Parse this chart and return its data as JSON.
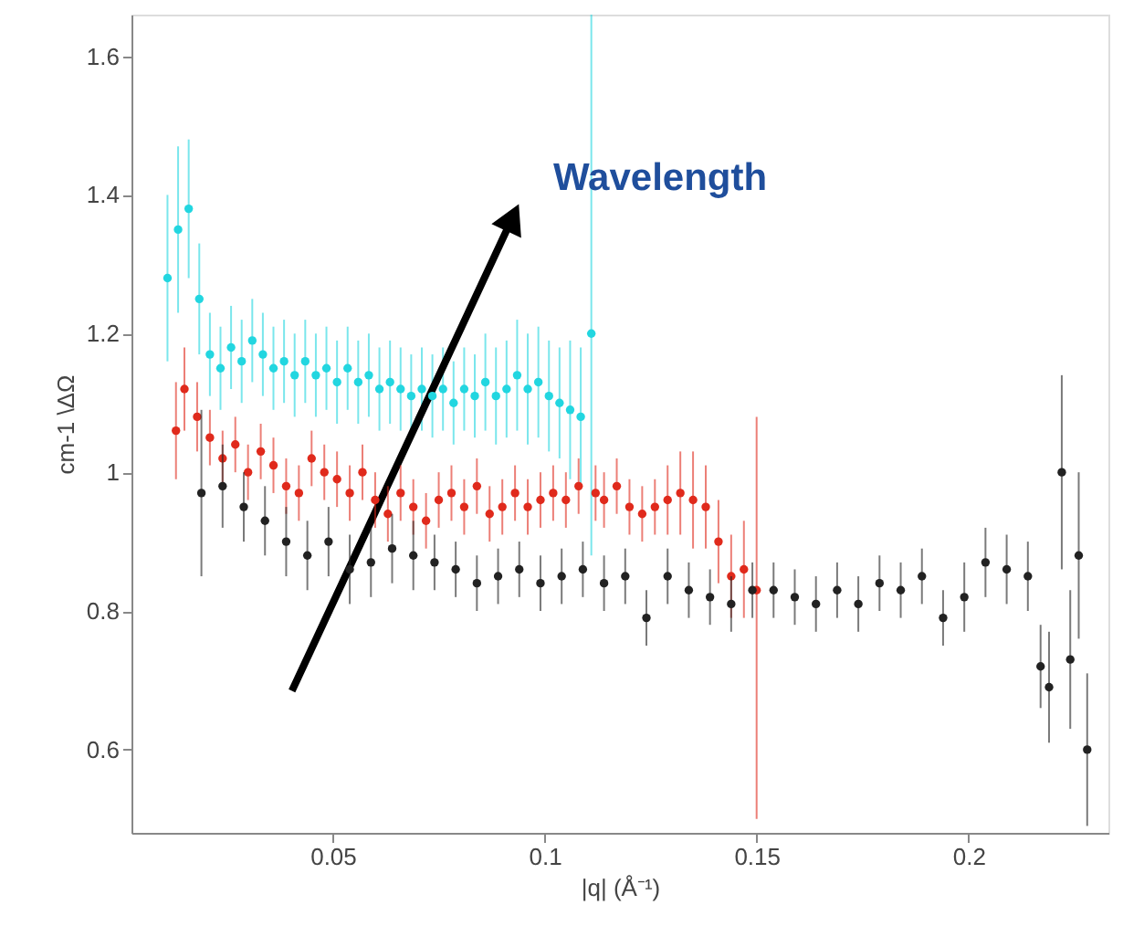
{
  "chart_data": {
    "type": "scatter",
    "xlabel": "|q| (Å⁻¹)",
    "ylabel": "cm-1 \\ΔΩ",
    "annotations": [
      "Wavelength"
    ],
    "xlim": [
      0.0025,
      0.233
    ],
    "xticks": [
      0.05,
      0.1,
      0.15,
      0.2
    ],
    "ylim": [
      0.48,
      1.66
    ],
    "yticks": [
      0.6,
      0.8,
      1,
      1.2,
      1.4,
      1.6
    ],
    "grid": false,
    "marker": "circle",
    "series": [
      {
        "color": "#22d6e0",
        "x": [
          0.011,
          0.0135,
          0.016,
          0.0185,
          0.021,
          0.0235,
          0.026,
          0.0285,
          0.031,
          0.0335,
          0.036,
          0.0385,
          0.041,
          0.0435,
          0.046,
          0.0485,
          0.051,
          0.0535,
          0.056,
          0.0585,
          0.061,
          0.0635,
          0.066,
          0.0685,
          0.071,
          0.0735,
          0.076,
          0.0785,
          0.081,
          0.0835,
          0.086,
          0.0885,
          0.091,
          0.0935,
          0.096,
          0.0985,
          0.101,
          0.1035,
          0.106,
          0.1085,
          0.111
        ],
        "values": [
          1.28,
          1.35,
          1.38,
          1.25,
          1.17,
          1.15,
          1.18,
          1.16,
          1.19,
          1.17,
          1.15,
          1.16,
          1.14,
          1.16,
          1.14,
          1.15,
          1.13,
          1.15,
          1.13,
          1.14,
          1.12,
          1.13,
          1.12,
          1.11,
          1.12,
          1.11,
          1.12,
          1.1,
          1.12,
          1.11,
          1.13,
          1.11,
          1.12,
          1.14,
          1.12,
          1.13,
          1.11,
          1.1,
          1.09,
          1.08,
          1.2
        ],
        "errors": [
          0.12,
          0.12,
          0.1,
          0.08,
          0.06,
          0.06,
          0.06,
          0.06,
          0.06,
          0.06,
          0.06,
          0.06,
          0.06,
          0.06,
          0.06,
          0.06,
          0.06,
          0.06,
          0.06,
          0.06,
          0.06,
          0.06,
          0.06,
          0.06,
          0.06,
          0.06,
          0.06,
          0.06,
          0.06,
          0.06,
          0.07,
          0.07,
          0.07,
          0.08,
          0.08,
          0.08,
          0.08,
          0.08,
          0.1,
          0.1,
          [
            0.88,
            1.66
          ]
        ]
      },
      {
        "color": "#e02a1c",
        "x": [
          0.013,
          0.015,
          0.018,
          0.021,
          0.024,
          0.027,
          0.03,
          0.033,
          0.036,
          0.039,
          0.042,
          0.045,
          0.048,
          0.051,
          0.054,
          0.057,
          0.06,
          0.063,
          0.066,
          0.069,
          0.072,
          0.075,
          0.078,
          0.081,
          0.084,
          0.087,
          0.09,
          0.093,
          0.096,
          0.099,
          0.102,
          0.105,
          0.108,
          0.112,
          0.114,
          0.117,
          0.12,
          0.123,
          0.126,
          0.129,
          0.132,
          0.135,
          0.138,
          0.141,
          0.144,
          0.147,
          0.15
        ],
        "values": [
          1.06,
          1.12,
          1.08,
          1.05,
          1.02,
          1.04,
          1.0,
          1.03,
          1.01,
          0.98,
          0.97,
          1.02,
          1.0,
          0.99,
          0.97,
          1.0,
          0.96,
          0.94,
          0.97,
          0.95,
          0.93,
          0.96,
          0.97,
          0.95,
          0.98,
          0.94,
          0.95,
          0.97,
          0.95,
          0.96,
          0.97,
          0.96,
          0.98,
          0.97,
          0.96,
          0.98,
          0.95,
          0.94,
          0.95,
          0.96,
          0.97,
          0.96,
          0.95,
          0.9,
          0.85,
          0.86,
          0.83
        ],
        "errors": [
          0.07,
          0.06,
          0.05,
          0.04,
          0.04,
          0.04,
          0.04,
          0.04,
          0.04,
          0.04,
          0.04,
          0.04,
          0.04,
          0.04,
          0.04,
          0.04,
          0.04,
          0.04,
          0.04,
          0.04,
          0.04,
          0.04,
          0.04,
          0.04,
          0.04,
          0.04,
          0.04,
          0.04,
          0.04,
          0.04,
          0.04,
          0.04,
          0.04,
          0.04,
          0.04,
          0.04,
          0.04,
          0.04,
          0.04,
          0.05,
          0.06,
          0.07,
          0.06,
          0.06,
          0.06,
          0.07,
          [
            0.5,
            1.08
          ]
        ]
      },
      {
        "color": "#222222",
        "x": [
          0.019,
          0.024,
          0.029,
          0.034,
          0.039,
          0.044,
          0.049,
          0.054,
          0.059,
          0.064,
          0.069,
          0.074,
          0.079,
          0.084,
          0.089,
          0.094,
          0.099,
          0.104,
          0.109,
          0.114,
          0.119,
          0.124,
          0.129,
          0.134,
          0.139,
          0.144,
          0.149,
          0.154,
          0.159,
          0.164,
          0.169,
          0.174,
          0.179,
          0.184,
          0.189,
          0.194,
          0.199,
          0.204,
          0.209,
          0.214,
          0.217,
          0.219,
          0.222,
          0.224,
          0.226,
          0.228
        ],
        "values": [
          0.97,
          0.98,
          0.95,
          0.93,
          0.9,
          0.88,
          0.9,
          0.86,
          0.87,
          0.89,
          0.88,
          0.87,
          0.86,
          0.84,
          0.85,
          0.86,
          0.84,
          0.85,
          0.86,
          0.84,
          0.85,
          0.79,
          0.85,
          0.83,
          0.82,
          0.81,
          0.83,
          0.83,
          0.82,
          0.81,
          0.83,
          0.81,
          0.84,
          0.83,
          0.85,
          0.79,
          0.82,
          0.87,
          0.86,
          0.85,
          0.72,
          0.69,
          1.0,
          0.73,
          0.88,
          0.6
        ],
        "errors": [
          0.12,
          0.06,
          0.05,
          0.05,
          0.05,
          0.05,
          0.05,
          0.05,
          0.05,
          0.05,
          0.05,
          0.04,
          0.04,
          0.04,
          0.04,
          0.04,
          0.04,
          0.04,
          0.04,
          0.04,
          0.04,
          0.04,
          0.04,
          0.04,
          0.04,
          0.04,
          0.04,
          0.04,
          0.04,
          0.04,
          0.04,
          0.04,
          0.04,
          0.04,
          0.04,
          0.04,
          0.05,
          0.05,
          0.05,
          0.05,
          0.06,
          0.08,
          0.14,
          0.1,
          0.12,
          0.11
        ]
      }
    ]
  }
}
